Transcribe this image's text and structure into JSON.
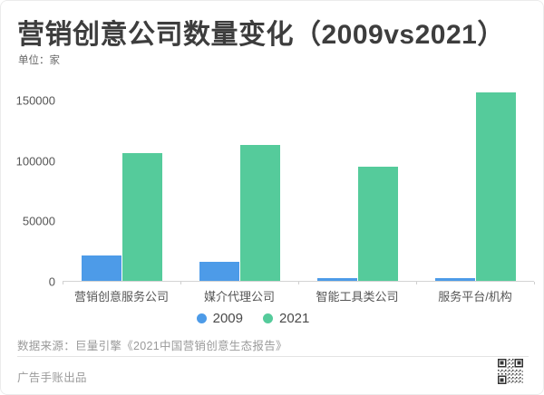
{
  "header": {
    "title": "营销创意公司数量变化（2009vs2021）",
    "unit_label": "单位：家"
  },
  "chart_data": {
    "type": "bar",
    "categories": [
      "营销创意服务公司",
      "媒介代理公司",
      "智能工具类公司",
      "服务平台/机构"
    ],
    "series": [
      {
        "name": "2009",
        "color": "#4D9BE8",
        "values": [
          21000,
          16000,
          2000,
          2000
        ]
      },
      {
        "name": "2021",
        "color": "#55CB9B",
        "values": [
          106000,
          113000,
          95000,
          156000
        ]
      }
    ],
    "title": "营销创意公司数量变化（2009vs2021）",
    "xlabel": "",
    "ylabel": "单位：家",
    "y_ticks": [
      0,
      50000,
      100000,
      150000
    ],
    "ylim": [
      0,
      161500
    ],
    "grid": false,
    "legend_position": "bottom"
  },
  "footer": {
    "source": "数据来源：巨量引擎《2021中国营销创意生态报告》",
    "credit": "广告手账出品",
    "qr_icon": "qr-code"
  }
}
